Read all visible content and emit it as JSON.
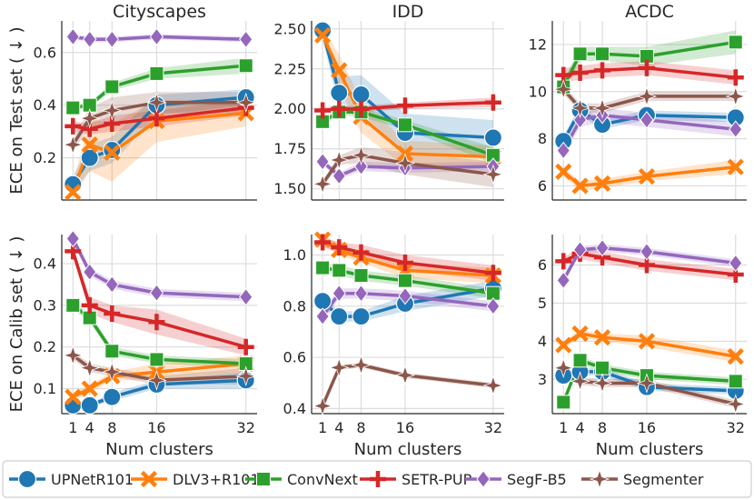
{
  "colors": {
    "UPNetR101": "#1f77b4",
    "DLV3+R101": "#ff7f0e",
    "ConvNext": "#2ca02c",
    "SETR-PUP": "#d62728",
    "SegF-B5": "#9467bd",
    "Segmenter": "#8c564b"
  },
  "markers": {
    "UPNetR101": "circle",
    "DLV3+R101": "x",
    "ConvNext": "square",
    "SETR-PUP": "plus",
    "SegF-B5": "diamond",
    "Segmenter": "star"
  },
  "legend": [
    "UPNetR101",
    "DLV3+R101",
    "ConvNext",
    "SETR-PUP",
    "SegF-B5",
    "Segmenter"
  ],
  "chart_data": [
    {
      "type": "line",
      "panel": "test-cityscapes",
      "title": "Cityscapes",
      "xlabel": "",
      "ylabel": "ECE on Test set ( ↓ )",
      "x": [
        1,
        4,
        8,
        16,
        32
      ],
      "xlim": [
        -1,
        34
      ],
      "ylim": [
        0.04,
        0.72
      ],
      "yticks": [
        0.2,
        0.4,
        0.6
      ],
      "yticklabels": [
        "0.2",
        "0.4",
        "0.6"
      ],
      "xticks": [],
      "xticklabels": [],
      "series": [
        {
          "name": "UPNetR101",
          "values": [
            0.1,
            0.2,
            0.23,
            0.4,
            0.43
          ],
          "band": [
            0.03,
            0.05,
            0.05,
            0.04,
            0.03
          ]
        },
        {
          "name": "DLV3+R101",
          "values": [
            0.07,
            0.25,
            0.22,
            0.34,
            0.37
          ],
          "band": [
            0.03,
            0.1,
            0.11,
            0.08,
            0.05
          ]
        },
        {
          "name": "ConvNext",
          "values": [
            0.39,
            0.4,
            0.47,
            0.52,
            0.55
          ],
          "band": [
            0.01,
            0.01,
            0.015,
            0.02,
            0.03
          ]
        },
        {
          "name": "SETR-PUP",
          "values": [
            0.32,
            0.31,
            0.33,
            0.35,
            0.39
          ],
          "band": [
            0.02,
            0.02,
            0.03,
            0.03,
            0.03
          ]
        },
        {
          "name": "SegF-B5",
          "values": [
            0.66,
            0.65,
            0.65,
            0.66,
            0.65
          ],
          "band": [
            0.01,
            0.01,
            0.01,
            0.01,
            0.01
          ]
        },
        {
          "name": "Segmenter",
          "values": [
            0.25,
            0.35,
            0.38,
            0.41,
            0.41
          ],
          "band": [
            0.02,
            0.04,
            0.05,
            0.04,
            0.04
          ]
        }
      ]
    },
    {
      "type": "line",
      "panel": "test-idd",
      "title": "IDD",
      "xlabel": "",
      "ylabel": "",
      "x": [
        1,
        4,
        8,
        16,
        32
      ],
      "xlim": [
        -1,
        34
      ],
      "ylim": [
        1.43,
        2.55
      ],
      "yticks": [
        1.5,
        1.75,
        2.0,
        2.25,
        2.5
      ],
      "yticklabels": [
        "1.50",
        "1.75",
        "2.00",
        "2.25",
        "2.50"
      ],
      "xticks": [],
      "xticklabels": [],
      "series": [
        {
          "name": "UPNetR101",
          "values": [
            2.49,
            2.1,
            2.09,
            1.85,
            1.82
          ],
          "band": [
            0.05,
            0.1,
            0.12,
            0.12,
            0.11
          ]
        },
        {
          "name": "DLV3+R101",
          "values": [
            2.46,
            2.24,
            1.95,
            1.72,
            1.7
          ],
          "band": [
            0.04,
            0.1,
            0.1,
            0.08,
            0.07
          ]
        },
        {
          "name": "ConvNext",
          "values": [
            1.92,
            1.98,
            1.98,
            1.9,
            1.71
          ],
          "band": [
            0.02,
            0.02,
            0.03,
            0.03,
            0.05
          ]
        },
        {
          "name": "SETR-PUP",
          "values": [
            1.99,
            2.0,
            2.0,
            2.02,
            2.04
          ],
          "band": [
            0.02,
            0.02,
            0.02,
            0.02,
            0.03
          ]
        },
        {
          "name": "SegF-B5",
          "values": [
            1.67,
            1.58,
            1.64,
            1.63,
            1.64
          ],
          "band": [
            0.02,
            0.02,
            0.03,
            0.03,
            0.03
          ]
        },
        {
          "name": "Segmenter",
          "values": [
            1.53,
            1.68,
            1.71,
            1.66,
            1.59
          ],
          "band": [
            0.02,
            0.03,
            0.05,
            0.07,
            0.08
          ]
        }
      ]
    },
    {
      "type": "line",
      "panel": "test-acdc",
      "title": "ACDC",
      "xlabel": "",
      "ylabel": "",
      "x": [
        1,
        4,
        8,
        16,
        32
      ],
      "xlim": [
        -1,
        34
      ],
      "ylim": [
        5.4,
        13.0
      ],
      "yticks": [
        6,
        8,
        10,
        12
      ],
      "yticklabels": [
        "6",
        "8",
        "10",
        "12"
      ],
      "xticks": [],
      "xticklabels": [],
      "series": [
        {
          "name": "UPNetR101",
          "values": [
            7.9,
            9.2,
            8.6,
            9.0,
            8.9
          ],
          "band": [
            0.2,
            0.2,
            0.2,
            0.2,
            0.2
          ]
        },
        {
          "name": "DLV3+R101",
          "values": [
            6.6,
            6.0,
            6.1,
            6.4,
            6.8
          ],
          "band": [
            0.2,
            0.2,
            0.2,
            0.2,
            0.3
          ]
        },
        {
          "name": "ConvNext",
          "values": [
            10.2,
            11.6,
            11.6,
            11.5,
            12.1
          ],
          "band": [
            0.3,
            0.3,
            0.3,
            0.4,
            0.5
          ]
        },
        {
          "name": "SETR-PUP",
          "values": [
            10.7,
            10.8,
            10.9,
            11.0,
            10.6
          ],
          "band": [
            0.3,
            0.3,
            0.3,
            0.3,
            0.3
          ]
        },
        {
          "name": "SegF-B5",
          "values": [
            7.5,
            8.8,
            9.0,
            8.8,
            8.4
          ],
          "band": [
            0.2,
            0.3,
            0.3,
            0.3,
            0.3
          ]
        },
        {
          "name": "Segmenter",
          "values": [
            10.1,
            9.3,
            9.3,
            9.8,
            9.8
          ],
          "band": [
            0.2,
            0.2,
            0.2,
            0.2,
            0.2
          ]
        }
      ]
    },
    {
      "type": "line",
      "panel": "calib-cityscapes",
      "title": "",
      "xlabel": "Num clusters",
      "ylabel": "ECE on Calib set ( ↓ )",
      "x": [
        1,
        4,
        8,
        16,
        32
      ],
      "xlim": [
        -1,
        34
      ],
      "ylim": [
        0.04,
        0.47
      ],
      "yticks": [
        0.1,
        0.2,
        0.3,
        0.4
      ],
      "yticklabels": [
        "0.1",
        "0.2",
        "0.3",
        "0.4"
      ],
      "xticks": [
        1,
        4,
        8,
        16,
        32
      ],
      "xticklabels": [
        "1",
        "4",
        "8",
        "16",
        "32"
      ],
      "series": [
        {
          "name": "UPNetR101",
          "values": [
            0.06,
            0.06,
            0.08,
            0.11,
            0.12
          ],
          "band": [
            0.005,
            0.005,
            0.01,
            0.01,
            0.02
          ]
        },
        {
          "name": "DLV3+R101",
          "values": [
            0.08,
            0.1,
            0.13,
            0.14,
            0.16
          ],
          "band": [
            0.01,
            0.01,
            0.01,
            0.02,
            0.02
          ]
        },
        {
          "name": "ConvNext",
          "values": [
            0.3,
            0.27,
            0.19,
            0.17,
            0.16
          ],
          "band": [
            0.01,
            0.01,
            0.01,
            0.01,
            0.01
          ]
        },
        {
          "name": "SETR-PUP",
          "values": [
            0.43,
            0.3,
            0.28,
            0.26,
            0.2
          ],
          "band": [
            0.01,
            0.02,
            0.02,
            0.03,
            0.02
          ]
        },
        {
          "name": "SegF-B5",
          "values": [
            0.46,
            0.38,
            0.35,
            0.33,
            0.32
          ],
          "band": [
            0.01,
            0.01,
            0.01,
            0.01,
            0.01
          ]
        },
        {
          "name": "Segmenter",
          "values": [
            0.18,
            0.15,
            0.14,
            0.12,
            0.13
          ],
          "band": [
            0.01,
            0.01,
            0.01,
            0.01,
            0.02
          ]
        }
      ]
    },
    {
      "type": "line",
      "panel": "calib-idd",
      "title": "",
      "xlabel": "Num clusters",
      "ylabel": "",
      "x": [
        1,
        4,
        8,
        16,
        32
      ],
      "xlim": [
        -1,
        34
      ],
      "ylim": [
        0.38,
        1.08
      ],
      "yticks": [
        0.4,
        0.6,
        0.8,
        1.0
      ],
      "yticklabels": [
        "0.4",
        "0.6",
        "0.8",
        "1.0"
      ],
      "xticks": [
        1,
        4,
        8,
        16,
        32
      ],
      "xticklabels": [
        "1",
        "4",
        "8",
        "16",
        "32"
      ],
      "series": [
        {
          "name": "UPNetR101",
          "values": [
            0.82,
            0.76,
            0.76,
            0.81,
            0.87
          ],
          "band": [
            0.02,
            0.02,
            0.02,
            0.03,
            0.03
          ]
        },
        {
          "name": "DLV3+R101",
          "values": [
            1.06,
            1.02,
            0.99,
            0.94,
            0.92
          ],
          "band": [
            0.02,
            0.02,
            0.02,
            0.03,
            0.03
          ]
        },
        {
          "name": "ConvNext",
          "values": [
            0.95,
            0.94,
            0.92,
            0.9,
            0.85
          ],
          "band": [
            0.02,
            0.02,
            0.02,
            0.02,
            0.02
          ]
        },
        {
          "name": "SETR-PUP",
          "values": [
            1.05,
            1.03,
            1.01,
            0.97,
            0.93
          ],
          "band": [
            0.02,
            0.02,
            0.03,
            0.03,
            0.03
          ]
        },
        {
          "name": "SegF-B5",
          "values": [
            0.76,
            0.85,
            0.85,
            0.84,
            0.8
          ],
          "band": [
            0.02,
            0.02,
            0.02,
            0.02,
            0.02
          ]
        },
        {
          "name": "Segmenter",
          "values": [
            0.41,
            0.56,
            0.57,
            0.53,
            0.49
          ],
          "band": [
            0.01,
            0.01,
            0.01,
            0.01,
            0.01
          ]
        }
      ]
    },
    {
      "type": "line",
      "panel": "calib-acdc",
      "title": "",
      "xlabel": "Num clusters",
      "ylabel": "",
      "x": [
        1,
        4,
        8,
        16,
        32
      ],
      "xlim": [
        -1,
        34
      ],
      "ylim": [
        2.1,
        6.8
      ],
      "yticks": [
        3,
        4,
        5,
        6
      ],
      "yticklabels": [
        "3",
        "4",
        "5",
        "6"
      ],
      "xticks": [
        1,
        4,
        8,
        16,
        32
      ],
      "xticklabels": [
        "1",
        "4",
        "8",
        "16",
        "32"
      ],
      "series": [
        {
          "name": "UPNetR101",
          "values": [
            3.1,
            3.2,
            3.2,
            2.8,
            2.7
          ],
          "band": [
            0.1,
            0.1,
            0.1,
            0.1,
            0.1
          ]
        },
        {
          "name": "DLV3+R101",
          "values": [
            3.9,
            4.2,
            4.1,
            4.0,
            3.6
          ],
          "band": [
            0.1,
            0.1,
            0.1,
            0.15,
            0.15
          ]
        },
        {
          "name": "ConvNext",
          "values": [
            2.4,
            3.5,
            3.3,
            3.1,
            2.95
          ],
          "band": [
            0.1,
            0.1,
            0.1,
            0.1,
            0.1
          ]
        },
        {
          "name": "SETR-PUP",
          "values": [
            6.1,
            6.3,
            6.2,
            6.0,
            5.75
          ],
          "band": [
            0.1,
            0.15,
            0.15,
            0.15,
            0.15
          ]
        },
        {
          "name": "SegF-B5",
          "values": [
            5.6,
            6.4,
            6.45,
            6.35,
            6.05
          ],
          "band": [
            0.1,
            0.1,
            0.1,
            0.1,
            0.1
          ]
        },
        {
          "name": "Segmenter",
          "values": [
            3.3,
            2.95,
            2.9,
            2.9,
            2.35
          ],
          "band": [
            0.1,
            0.1,
            0.1,
            0.1,
            0.1
          ]
        }
      ]
    }
  ]
}
